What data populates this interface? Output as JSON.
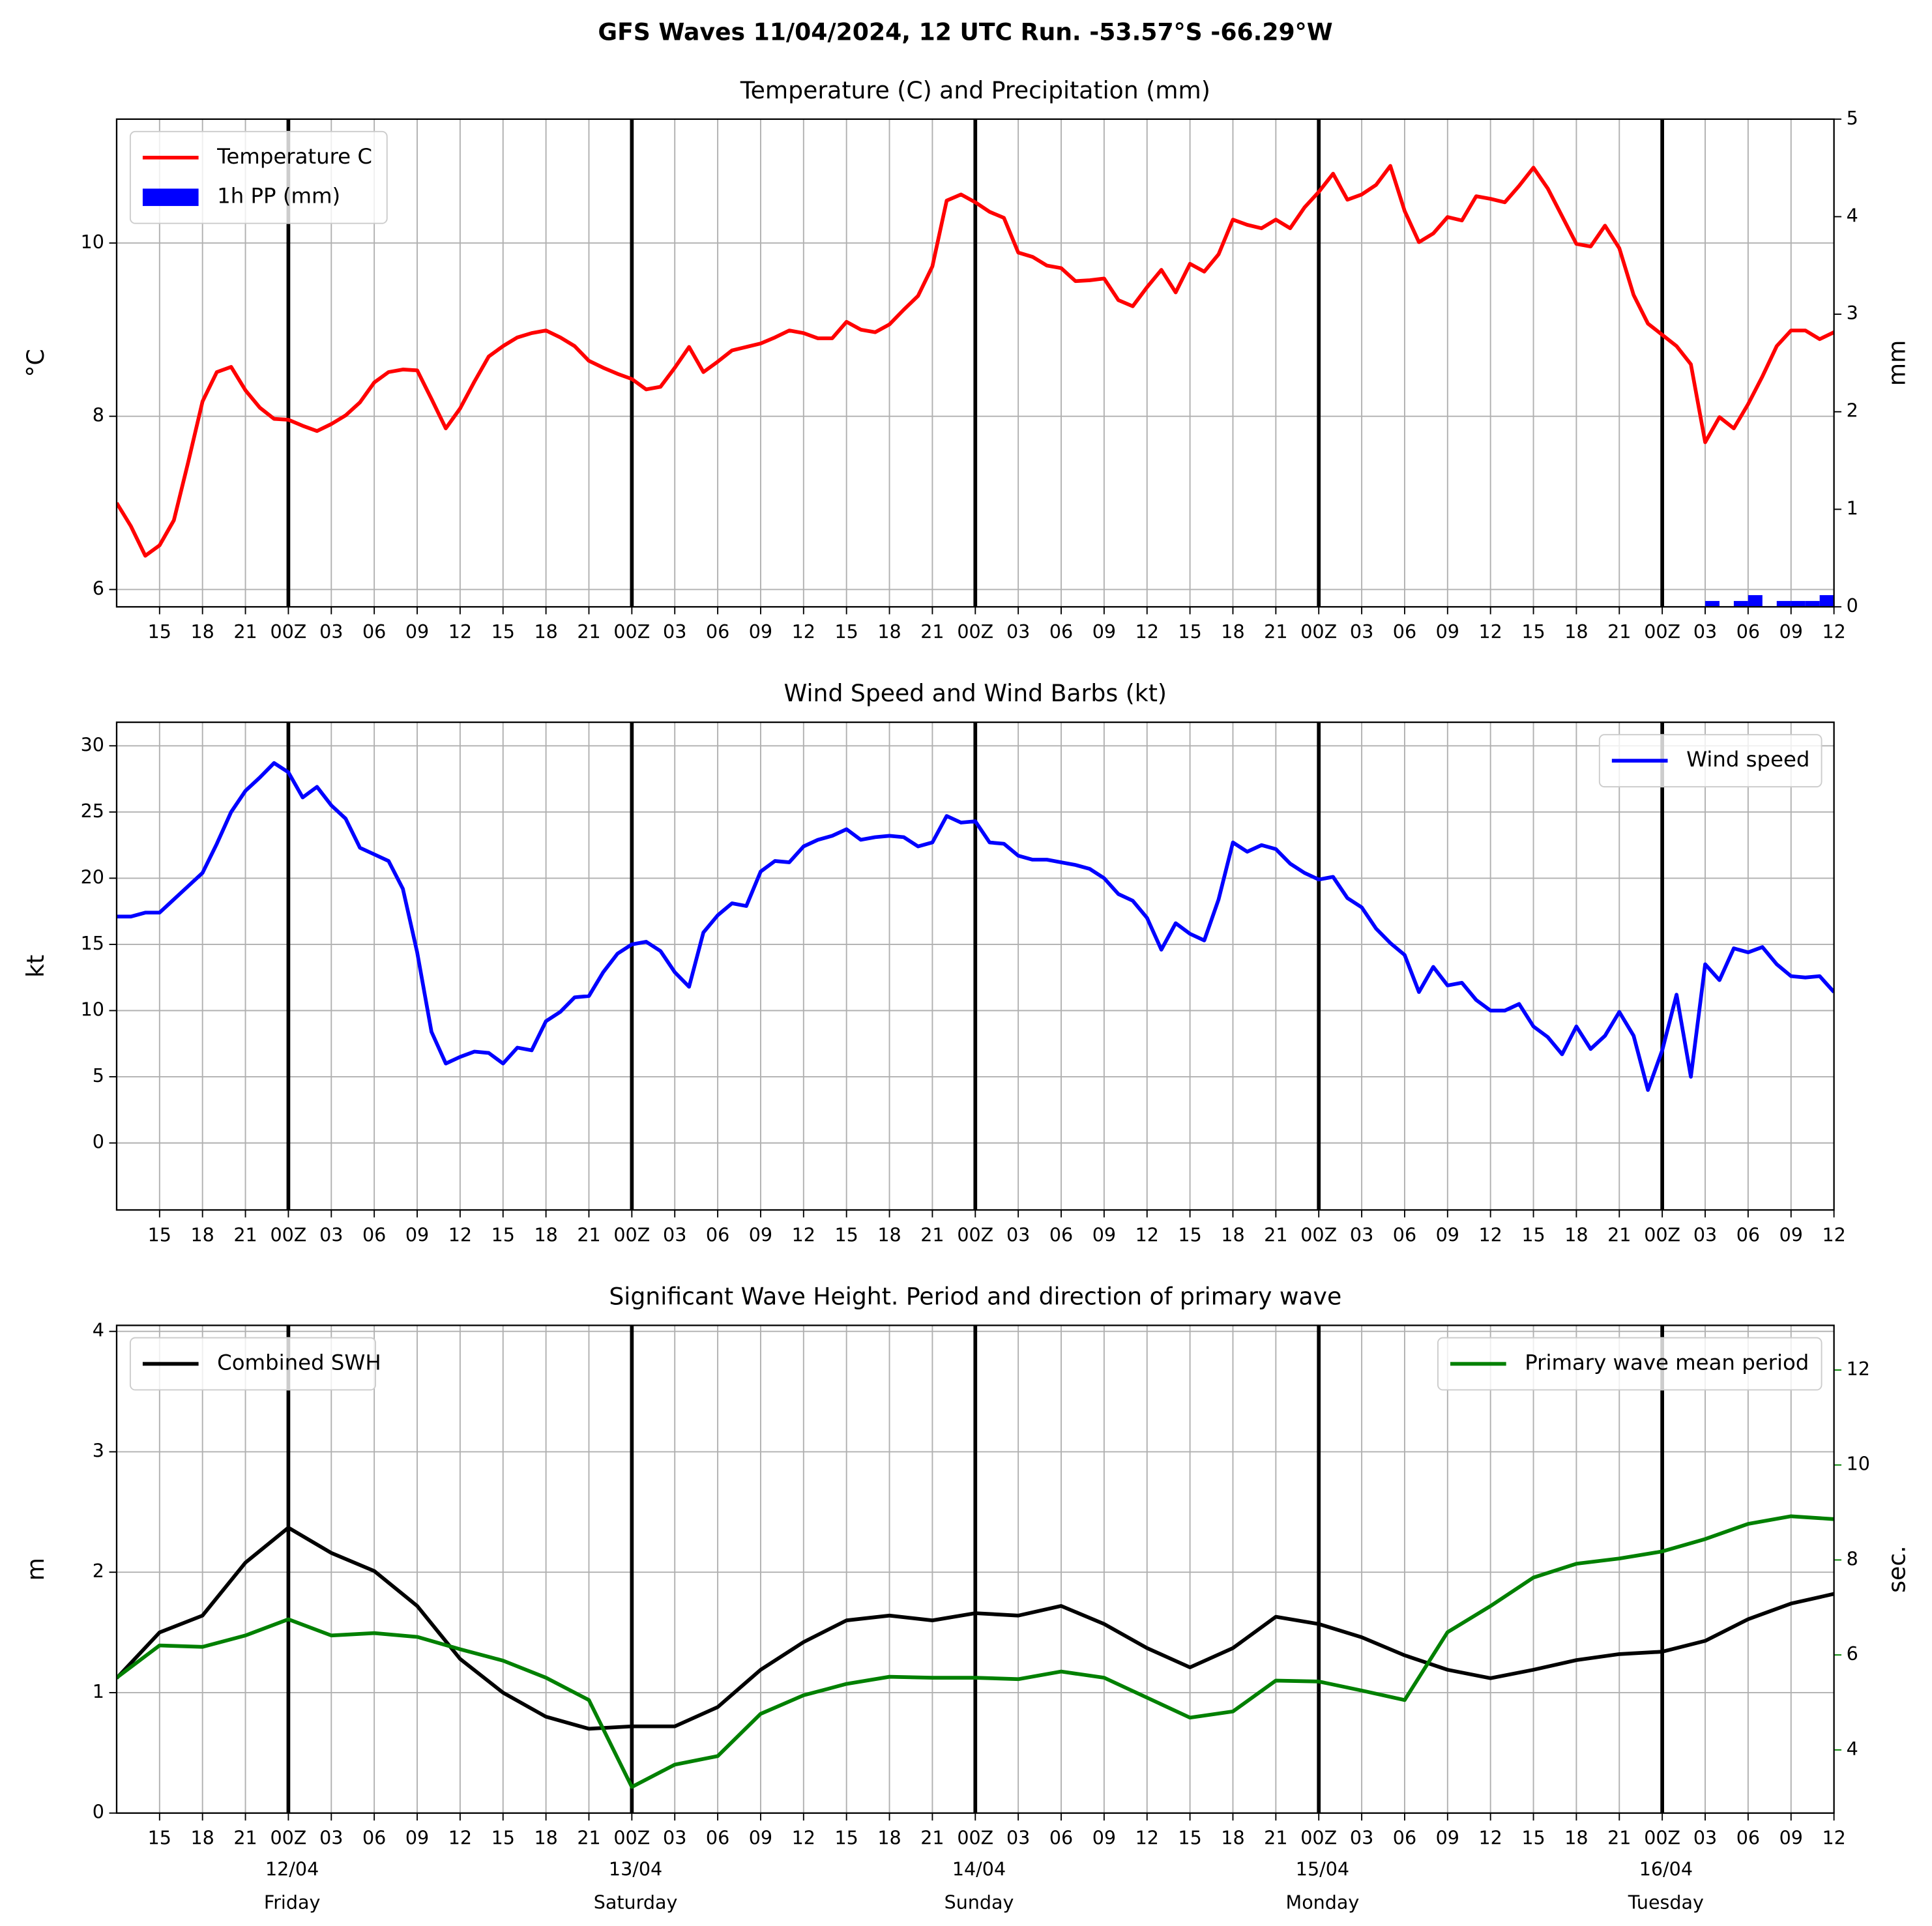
{
  "title": "GFS Waves 11/04/2024, 12 UTC Run. -53.57°S -66.29°W",
  "xaxis": {
    "xlim": [
      0,
      120
    ],
    "vlines": [
      12,
      36,
      60,
      84,
      108
    ],
    "xticks": [
      {
        "value": 3,
        "label": "15"
      },
      {
        "value": 6,
        "label": "18"
      },
      {
        "value": 9,
        "label": "21"
      },
      {
        "value": 12,
        "label": "00Z"
      },
      {
        "value": 15,
        "label": "03"
      },
      {
        "value": 18,
        "label": "06"
      },
      {
        "value": 21,
        "label": "09"
      },
      {
        "value": 24,
        "label": "12"
      },
      {
        "value": 27,
        "label": "15"
      },
      {
        "value": 30,
        "label": "18"
      },
      {
        "value": 33,
        "label": "21"
      },
      {
        "value": 36,
        "label": "00Z"
      },
      {
        "value": 39,
        "label": "03"
      },
      {
        "value": 42,
        "label": "06"
      },
      {
        "value": 45,
        "label": "09"
      },
      {
        "value": 48,
        "label": "12"
      },
      {
        "value": 51,
        "label": "15"
      },
      {
        "value": 54,
        "label": "18"
      },
      {
        "value": 57,
        "label": "21"
      },
      {
        "value": 60,
        "label": "00Z"
      },
      {
        "value": 63,
        "label": "03"
      },
      {
        "value": 66,
        "label": "06"
      },
      {
        "value": 69,
        "label": "09"
      },
      {
        "value": 72,
        "label": "12"
      },
      {
        "value": 75,
        "label": "15"
      },
      {
        "value": 78,
        "label": "18"
      },
      {
        "value": 81,
        "label": "21"
      },
      {
        "value": 84,
        "label": "00Z"
      },
      {
        "value": 87,
        "label": "03"
      },
      {
        "value": 90,
        "label": "06"
      },
      {
        "value": 93,
        "label": "09"
      },
      {
        "value": 96,
        "label": "12"
      },
      {
        "value": 99,
        "label": "15"
      },
      {
        "value": 102,
        "label": "18"
      },
      {
        "value": 105,
        "label": "21"
      },
      {
        "value": 108,
        "label": "00Z"
      },
      {
        "value": 111,
        "label": "03"
      },
      {
        "value": 114,
        "label": "06"
      },
      {
        "value": 117,
        "label": "09"
      },
      {
        "value": 120,
        "label": "12"
      }
    ],
    "day_labels": [
      {
        "value": 12,
        "date": "12/04",
        "day": "Friday"
      },
      {
        "value": 36,
        "date": "13/04",
        "day": "Saturday"
      },
      {
        "value": 60,
        "date": "14/04",
        "day": "Sunday"
      },
      {
        "value": 84,
        "date": "15/04",
        "day": "Monday"
      },
      {
        "value": 108,
        "date": "16/04",
        "day": "Tuesday"
      }
    ]
  },
  "chart_data": [
    {
      "type": "line",
      "title": "Temperature (C) and Precipitation (mm)",
      "ylabel": "°C",
      "y2label": "mm",
      "ylim": [
        5.8,
        11.43
      ],
      "yticks": [
        6,
        8,
        10
      ],
      "y2lim": [
        0,
        5
      ],
      "y2ticks": [
        0,
        1,
        2,
        3,
        4,
        5
      ],
      "grid": true,
      "legend": "upper left",
      "series": [
        {
          "name": "Temperature C",
          "color": "#ff0000",
          "type": "line",
          "x": [
            0,
            1,
            2,
            3,
            4,
            5,
            6,
            7,
            8,
            9,
            10,
            11,
            12,
            13,
            14,
            15,
            16,
            17,
            18,
            19,
            20,
            21,
            22,
            23,
            24,
            25,
            26,
            27,
            28,
            29,
            30,
            31,
            32,
            33,
            34,
            35,
            36,
            37,
            38,
            39,
            40,
            41,
            42,
            43,
            44,
            45,
            46,
            47,
            48,
            49,
            50,
            51,
            52,
            53,
            54,
            55,
            56,
            57,
            58,
            59,
            60,
            61,
            62,
            63,
            64,
            65,
            66,
            67,
            68,
            69,
            70,
            71,
            72,
            73,
            74,
            75,
            76,
            77,
            78,
            79,
            80,
            81,
            82,
            83,
            84,
            85,
            86,
            87,
            88,
            89,
            90,
            91,
            92,
            93,
            94,
            95,
            96,
            97,
            98,
            99,
            100,
            101,
            102,
            103,
            104,
            105,
            106,
            107,
            108,
            109,
            110,
            111,
            112,
            113,
            114,
            115,
            116,
            117,
            118,
            119,
            120
          ],
          "values": [
            7.0,
            6.73,
            6.39,
            6.51,
            6.8,
            7.47,
            8.17,
            8.51,
            8.57,
            8.3,
            8.1,
            7.97,
            7.96,
            7.89,
            7.83,
            7.91,
            8.01,
            8.16,
            8.39,
            8.51,
            8.54,
            8.53,
            8.2,
            7.86,
            8.09,
            8.4,
            8.69,
            8.81,
            8.91,
            8.96,
            8.99,
            8.91,
            8.81,
            8.64,
            8.56,
            8.49,
            8.43,
            8.31,
            8.34,
            8.56,
            8.8,
            8.51,
            8.63,
            8.76,
            8.8,
            8.84,
            8.91,
            8.99,
            8.96,
            8.9,
            8.9,
            9.09,
            9.0,
            8.97,
            9.06,
            9.23,
            9.39,
            9.73,
            10.49,
            10.56,
            10.47,
            10.36,
            10.29,
            9.89,
            9.84,
            9.74,
            9.71,
            9.56,
            9.57,
            9.59,
            9.34,
            9.27,
            9.49,
            9.69,
            9.43,
            9.76,
            9.67,
            9.87,
            10.27,
            10.21,
            10.17,
            10.27,
            10.17,
            10.41,
            10.59,
            10.8,
            10.5,
            10.56,
            10.67,
            10.89,
            10.37,
            10.01,
            10.11,
            10.3,
            10.26,
            10.54,
            10.51,
            10.47,
            10.66,
            10.87,
            10.63,
            10.31,
            9.99,
            9.96,
            10.2,
            9.94,
            9.4,
            9.07,
            8.94,
            8.81,
            8.6,
            7.7,
            7.99,
            7.86,
            8.14,
            8.46,
            8.81,
            8.99,
            8.99,
            8.89,
            8.97
          ]
        },
        {
          "name": "1h PP (mm)",
          "color": "#0000ff",
          "type": "bar",
          "axis": "y2",
          "x": [
            111,
            112,
            113,
            114,
            115,
            116,
            117,
            118,
            119
          ],
          "values": [
            0.06,
            0,
            0.06,
            0.12,
            0,
            0.06,
            0.06,
            0.06,
            0.12
          ]
        }
      ]
    },
    {
      "type": "line",
      "title": "Wind Speed and Wind Barbs (kt)",
      "ylabel": "kt",
      "ylim": [
        -5.06,
        31.78
      ],
      "yticks": [
        0,
        5,
        10,
        15,
        20,
        25,
        30
      ],
      "grid": true,
      "legend": "upper right",
      "series": [
        {
          "name": "Wind speed",
          "color": "#0000ff",
          "type": "line",
          "x": [
            0,
            1,
            2,
            3,
            4,
            5,
            6,
            7,
            8,
            9,
            10,
            11,
            12,
            13,
            14,
            15,
            16,
            17,
            18,
            19,
            20,
            21,
            22,
            23,
            24,
            25,
            26,
            27,
            28,
            29,
            30,
            31,
            32,
            33,
            34,
            35,
            36,
            37,
            38,
            39,
            40,
            41,
            42,
            43,
            44,
            45,
            46,
            47,
            48,
            49,
            50,
            51,
            52,
            53,
            54,
            55,
            56,
            57,
            58,
            59,
            60,
            61,
            62,
            63,
            64,
            65,
            66,
            67,
            68,
            69,
            70,
            71,
            72,
            73,
            74,
            75,
            76,
            77,
            78,
            79,
            80,
            81,
            82,
            83,
            84,
            85,
            86,
            87,
            88,
            89,
            90,
            91,
            92,
            93,
            94,
            95,
            96,
            97,
            98,
            99,
            100,
            101,
            102,
            103,
            104,
            105,
            106,
            107,
            108,
            109,
            110,
            111,
            112,
            113,
            114,
            115,
            116,
            117,
            118,
            119,
            120
          ],
          "values": [
            17.1,
            17.1,
            17.4,
            17.4,
            18.4,
            19.4,
            20.4,
            22.6,
            25.0,
            26.6,
            27.6,
            28.7,
            28.0,
            26.1,
            26.9,
            25.5,
            24.5,
            22.3,
            21.8,
            21.3,
            19.2,
            14.4,
            8.4,
            6.0,
            6.5,
            6.9,
            6.8,
            6.0,
            7.2,
            7.0,
            9.2,
            9.9,
            11.0,
            11.1,
            12.9,
            14.3,
            15.0,
            15.2,
            14.5,
            12.9,
            11.8,
            15.9,
            17.2,
            18.1,
            17.9,
            20.5,
            21.3,
            21.2,
            22.4,
            22.9,
            23.2,
            23.7,
            22.9,
            23.1,
            23.2,
            23.1,
            22.4,
            22.7,
            24.7,
            24.2,
            24.3,
            22.7,
            22.6,
            21.7,
            21.4,
            21.4,
            21.2,
            21.0,
            20.7,
            20.0,
            18.8,
            18.3,
            17.0,
            14.6,
            16.6,
            15.8,
            15.3,
            18.4,
            22.7,
            22.0,
            22.5,
            22.2,
            21.1,
            20.4,
            19.9,
            20.1,
            18.5,
            17.8,
            16.2,
            15.1,
            14.2,
            11.4,
            13.3,
            11.9,
            12.1,
            10.8,
            10.0,
            10.0,
            10.5,
            8.8,
            8.0,
            6.7,
            8.8,
            7.1,
            8.1,
            9.9,
            8.1,
            4.0,
            7.0,
            11.2,
            5.0,
            13.5,
            12.3,
            14.7,
            14.4,
            14.8,
            13.5,
            12.6,
            12.5,
            12.6,
            11.4
          ]
        }
      ]
    },
    {
      "type": "line",
      "title": "Significant Wave Height. Period and direction of primary wave",
      "ylabel": "m",
      "y2label": "sec.",
      "y2color": "#008000",
      "ylim": [
        0,
        4.05
      ],
      "yticks": [
        0,
        1,
        2,
        3,
        4
      ],
      "y2lim": [
        2.67,
        12.94
      ],
      "y2ticks": [
        4,
        6,
        8,
        10,
        12
      ],
      "grid": true,
      "legend": "upper left",
      "series": [
        {
          "name": "Combined SWH",
          "color": "#000000",
          "type": "line",
          "legend": "upper left",
          "x": [
            0,
            3,
            6,
            9,
            12,
            15,
            18,
            21,
            24,
            27,
            30,
            33,
            36,
            39,
            42,
            45,
            48,
            51,
            54,
            57,
            60,
            63,
            66,
            69,
            72,
            75,
            78,
            81,
            84,
            87,
            90,
            93,
            96,
            99,
            102,
            105,
            108,
            111,
            114,
            117,
            120
          ],
          "values": [
            1.12,
            1.5,
            1.64,
            2.08,
            2.37,
            2.16,
            2.01,
            1.72,
            1.28,
            1.0,
            0.8,
            0.7,
            0.72,
            0.72,
            0.88,
            1.19,
            1.42,
            1.6,
            1.64,
            1.6,
            1.66,
            1.64,
            1.72,
            1.57,
            1.37,
            1.21,
            1.37,
            1.63,
            1.57,
            1.46,
            1.31,
            1.19,
            1.12,
            1.19,
            1.27,
            1.32,
            1.34,
            1.43,
            1.61,
            1.74,
            1.82
          ]
        },
        {
          "name": "Primary wave mean period",
          "color": "#008000",
          "type": "line",
          "axis": "y2",
          "legend": "upper right",
          "x": [
            0,
            3,
            6,
            9,
            12,
            15,
            18,
            21,
            24,
            27,
            30,
            33,
            36,
            39,
            42,
            45,
            48,
            51,
            54,
            57,
            60,
            63,
            66,
            69,
            72,
            75,
            78,
            81,
            84,
            87,
            90,
            93,
            96,
            99,
            102,
            105,
            108,
            111,
            114,
            117,
            120
          ],
          "values": [
            5.52,
            6.2,
            6.17,
            6.41,
            6.75,
            6.41,
            6.46,
            6.38,
            6.12,
            5.88,
            5.52,
            5.05,
            3.22,
            3.69,
            3.87,
            4.76,
            5.15,
            5.39,
            5.54,
            5.52,
            5.52,
            5.49,
            5.65,
            5.52,
            5.1,
            4.68,
            4.81,
            5.46,
            5.44,
            5.25,
            5.05,
            6.48,
            7.03,
            7.63,
            7.92,
            8.03,
            8.18,
            8.44,
            8.76,
            8.92,
            8.86
          ]
        }
      ]
    }
  ]
}
